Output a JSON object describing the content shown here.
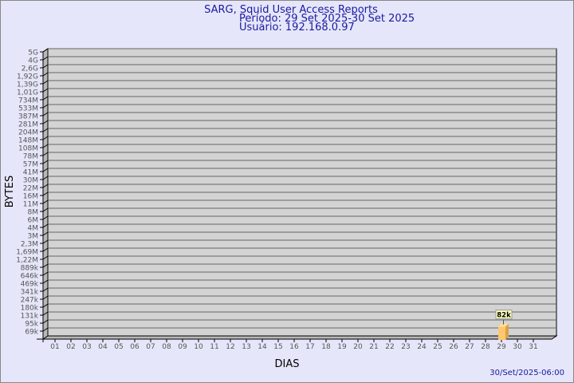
{
  "chart_data": {
    "type": "bar",
    "title": "SARG, Squid User Access Reports",
    "subtitle_period": "Período: 29 Set 2025-30 Set 2025",
    "subtitle_user": "Usuário: 192.168.0.97",
    "xlabel": "DIAS",
    "ylabel": "BYTES",
    "footer": "30/Set/2025-06:00",
    "y_scale": "log",
    "y_tick_labels": [
      "5G",
      "4G",
      "2,6G",
      "1,92G",
      "1,39G",
      "1,01G",
      "734M",
      "533M",
      "387M",
      "281M",
      "204M",
      "148M",
      "108M",
      "78M",
      "57M",
      "41M",
      "30M",
      "22M",
      "16M",
      "11M",
      "8M",
      "6M",
      "4M",
      "3M",
      "2,3M",
      "1,69M",
      "1,22M",
      "889k",
      "646k",
      "469k",
      "341k",
      "247k",
      "180k",
      "131k",
      "95k",
      "69k"
    ],
    "categories": [
      "01",
      "02",
      "03",
      "04",
      "05",
      "06",
      "07",
      "08",
      "09",
      "10",
      "11",
      "12",
      "13",
      "14",
      "15",
      "16",
      "17",
      "18",
      "19",
      "20",
      "21",
      "22",
      "23",
      "24",
      "25",
      "26",
      "27",
      "28",
      "29",
      "30",
      "31"
    ],
    "bars": [
      {
        "category": "29",
        "value": 82000,
        "label": "82k"
      }
    ],
    "grid": true,
    "colors": {
      "background": "#e6e6fa",
      "plot": "#d3d3d3",
      "bar": "#ffc86e",
      "text": "#1a1aa0",
      "label_box": "#ffffc0"
    }
  }
}
